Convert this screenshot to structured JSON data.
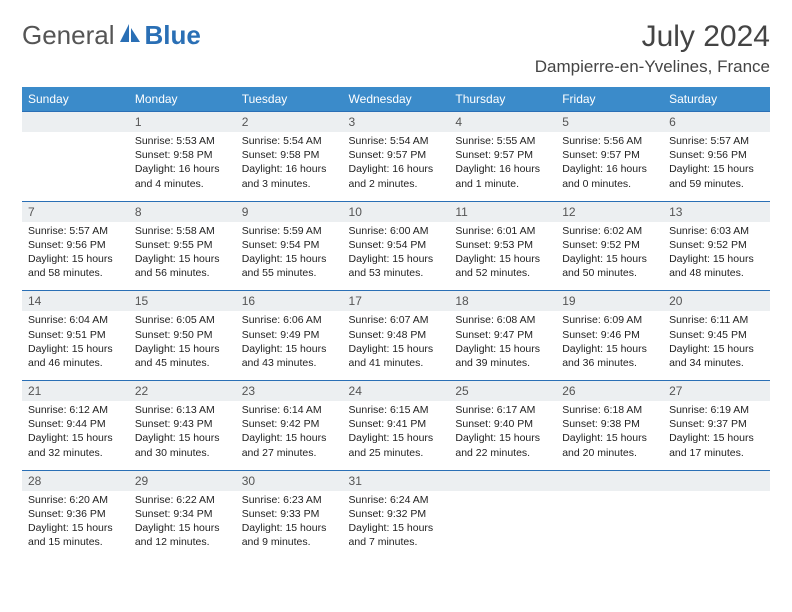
{
  "brand": {
    "part1": "General",
    "part2": "Blue"
  },
  "header": {
    "month": "July 2024",
    "location": "Dampierre-en-Yvelines, France"
  },
  "colors": {
    "header_bg": "#3b8bca",
    "header_text": "#ffffff",
    "daynum_bg": "#eceff1",
    "rule": "#2a6fb5",
    "text": "#222222",
    "title": "#444444"
  },
  "dow": [
    "Sunday",
    "Monday",
    "Tuesday",
    "Wednesday",
    "Thursday",
    "Friday",
    "Saturday"
  ],
  "weeks": [
    {
      "nums": [
        "",
        "1",
        "2",
        "3",
        "4",
        "5",
        "6"
      ],
      "cells": [
        [],
        [
          "Sunrise: 5:53 AM",
          "Sunset: 9:58 PM",
          "Daylight: 16 hours",
          "and 4 minutes."
        ],
        [
          "Sunrise: 5:54 AM",
          "Sunset: 9:58 PM",
          "Daylight: 16 hours",
          "and 3 minutes."
        ],
        [
          "Sunrise: 5:54 AM",
          "Sunset: 9:57 PM",
          "Daylight: 16 hours",
          "and 2 minutes."
        ],
        [
          "Sunrise: 5:55 AM",
          "Sunset: 9:57 PM",
          "Daylight: 16 hours",
          "and 1 minute."
        ],
        [
          "Sunrise: 5:56 AM",
          "Sunset: 9:57 PM",
          "Daylight: 16 hours",
          "and 0 minutes."
        ],
        [
          "Sunrise: 5:57 AM",
          "Sunset: 9:56 PM",
          "Daylight: 15 hours",
          "and 59 minutes."
        ]
      ]
    },
    {
      "nums": [
        "7",
        "8",
        "9",
        "10",
        "11",
        "12",
        "13"
      ],
      "cells": [
        [
          "Sunrise: 5:57 AM",
          "Sunset: 9:56 PM",
          "Daylight: 15 hours",
          "and 58 minutes."
        ],
        [
          "Sunrise: 5:58 AM",
          "Sunset: 9:55 PM",
          "Daylight: 15 hours",
          "and 56 minutes."
        ],
        [
          "Sunrise: 5:59 AM",
          "Sunset: 9:54 PM",
          "Daylight: 15 hours",
          "and 55 minutes."
        ],
        [
          "Sunrise: 6:00 AM",
          "Sunset: 9:54 PM",
          "Daylight: 15 hours",
          "and 53 minutes."
        ],
        [
          "Sunrise: 6:01 AM",
          "Sunset: 9:53 PM",
          "Daylight: 15 hours",
          "and 52 minutes."
        ],
        [
          "Sunrise: 6:02 AM",
          "Sunset: 9:52 PM",
          "Daylight: 15 hours",
          "and 50 minutes."
        ],
        [
          "Sunrise: 6:03 AM",
          "Sunset: 9:52 PM",
          "Daylight: 15 hours",
          "and 48 minutes."
        ]
      ]
    },
    {
      "nums": [
        "14",
        "15",
        "16",
        "17",
        "18",
        "19",
        "20"
      ],
      "cells": [
        [
          "Sunrise: 6:04 AM",
          "Sunset: 9:51 PM",
          "Daylight: 15 hours",
          "and 46 minutes."
        ],
        [
          "Sunrise: 6:05 AM",
          "Sunset: 9:50 PM",
          "Daylight: 15 hours",
          "and 45 minutes."
        ],
        [
          "Sunrise: 6:06 AM",
          "Sunset: 9:49 PM",
          "Daylight: 15 hours",
          "and 43 minutes."
        ],
        [
          "Sunrise: 6:07 AM",
          "Sunset: 9:48 PM",
          "Daylight: 15 hours",
          "and 41 minutes."
        ],
        [
          "Sunrise: 6:08 AM",
          "Sunset: 9:47 PM",
          "Daylight: 15 hours",
          "and 39 minutes."
        ],
        [
          "Sunrise: 6:09 AM",
          "Sunset: 9:46 PM",
          "Daylight: 15 hours",
          "and 36 minutes."
        ],
        [
          "Sunrise: 6:11 AM",
          "Sunset: 9:45 PM",
          "Daylight: 15 hours",
          "and 34 minutes."
        ]
      ]
    },
    {
      "nums": [
        "21",
        "22",
        "23",
        "24",
        "25",
        "26",
        "27"
      ],
      "cells": [
        [
          "Sunrise: 6:12 AM",
          "Sunset: 9:44 PM",
          "Daylight: 15 hours",
          "and 32 minutes."
        ],
        [
          "Sunrise: 6:13 AM",
          "Sunset: 9:43 PM",
          "Daylight: 15 hours",
          "and 30 minutes."
        ],
        [
          "Sunrise: 6:14 AM",
          "Sunset: 9:42 PM",
          "Daylight: 15 hours",
          "and 27 minutes."
        ],
        [
          "Sunrise: 6:15 AM",
          "Sunset: 9:41 PM",
          "Daylight: 15 hours",
          "and 25 minutes."
        ],
        [
          "Sunrise: 6:17 AM",
          "Sunset: 9:40 PM",
          "Daylight: 15 hours",
          "and 22 minutes."
        ],
        [
          "Sunrise: 6:18 AM",
          "Sunset: 9:38 PM",
          "Daylight: 15 hours",
          "and 20 minutes."
        ],
        [
          "Sunrise: 6:19 AM",
          "Sunset: 9:37 PM",
          "Daylight: 15 hours",
          "and 17 minutes."
        ]
      ]
    },
    {
      "nums": [
        "28",
        "29",
        "30",
        "31",
        "",
        "",
        ""
      ],
      "cells": [
        [
          "Sunrise: 6:20 AM",
          "Sunset: 9:36 PM",
          "Daylight: 15 hours",
          "and 15 minutes."
        ],
        [
          "Sunrise: 6:22 AM",
          "Sunset: 9:34 PM",
          "Daylight: 15 hours",
          "and 12 minutes."
        ],
        [
          "Sunrise: 6:23 AM",
          "Sunset: 9:33 PM",
          "Daylight: 15 hours",
          "and 9 minutes."
        ],
        [
          "Sunrise: 6:24 AM",
          "Sunset: 9:32 PM",
          "Daylight: 15 hours",
          "and 7 minutes."
        ],
        [],
        [],
        []
      ]
    }
  ]
}
